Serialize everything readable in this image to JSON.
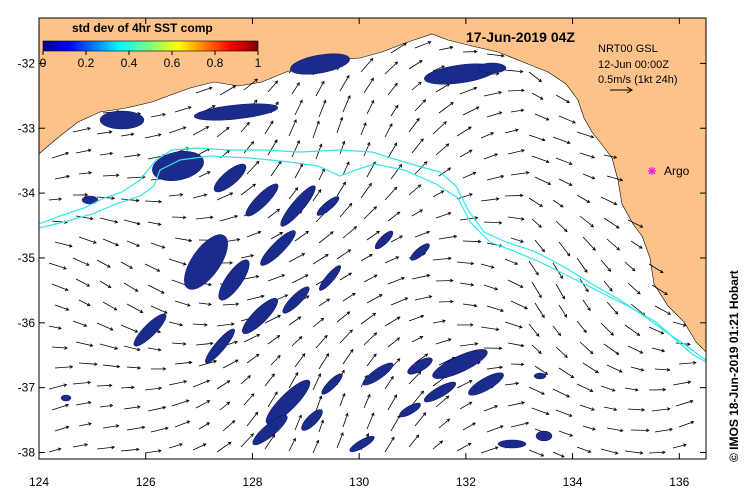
{
  "map": {
    "title": "17-Jun-2019 04Z",
    "lon_range": [
      124,
      136.5
    ],
    "lat_range": [
      -38.1,
      -31.3
    ],
    "x_ticks": [
      "124",
      "126",
      "128",
      "130",
      "132",
      "134",
      "136"
    ],
    "y_ticks": [
      "-32",
      "-33",
      "-34",
      "-35",
      "-36",
      "-37",
      "-38"
    ],
    "land_color": "#fcc28a",
    "data_color": "#1a2b8c",
    "contour_color": "#33e6ea"
  },
  "colorbar": {
    "title": "std dev of 4hr SST comp",
    "tick_labels": [
      "0",
      "0.2",
      "0.4",
      "0.6",
      "0.8",
      "1"
    ]
  },
  "info_box": {
    "model_line": "NRT00 GSL",
    "date_line": "12-Jun 00:00Z",
    "scale_line": "0.5m/s (1kt 24h)"
  },
  "argo": {
    "label": "Argo",
    "marker_color": "#e020e0"
  },
  "credit": {
    "text": "© IMOS 18-Jun-2019 01:21 Hobart"
  }
}
